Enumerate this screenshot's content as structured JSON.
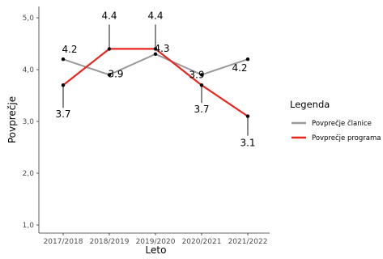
{
  "chart_data": {
    "type": "line",
    "categories": [
      "2017/2018",
      "2018/2019",
      "2019/2020",
      "2020/2021",
      "2021/2022"
    ],
    "series": [
      {
        "name": "Povprečje članice",
        "color": "#999999",
        "values": [
          4.2,
          3.9,
          4.3,
          3.9,
          4.2
        ],
        "labels": [
          "4.2",
          "3.9",
          "4.3",
          "3.9",
          "4.2"
        ]
      },
      {
        "name": "Povprečje programa",
        "color": "#e8251f",
        "values": [
          3.7,
          4.4,
          4.4,
          3.7,
          3.1
        ],
        "labels": [
          "3.7",
          "4.4",
          "4.4",
          "3.7",
          "3.1"
        ]
      }
    ],
    "xlabel": "Leto",
    "ylabel": "Povprečje",
    "ylim": [
      1.0,
      5.0
    ],
    "yticks": [
      "1,0",
      "2,0",
      "3,0",
      "4,0",
      "5,0"
    ],
    "ytick_values": [
      1,
      2,
      3,
      4,
      5
    ],
    "grid": false,
    "legend": {
      "title": "Legenda",
      "position": "right"
    }
  }
}
